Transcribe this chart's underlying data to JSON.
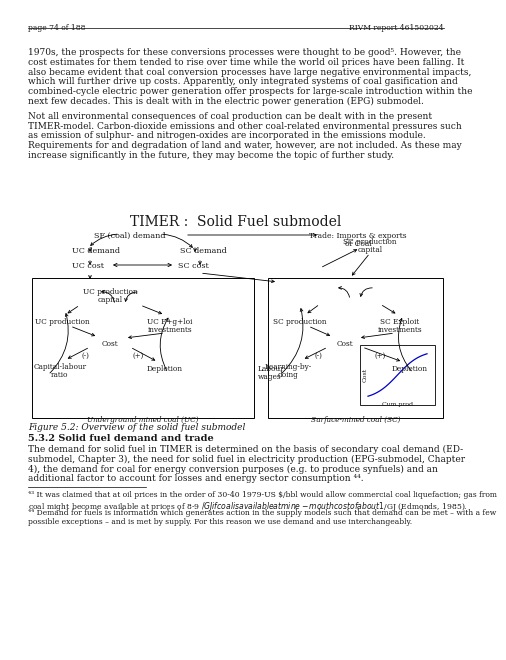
{
  "page_header_left": "page 74 of 188",
  "page_header_right": "RIVM report 461502024",
  "para1_lines": [
    "1970s, the prospects for these conversions processes were thought to be good⁵. However, the",
    "cost estimates for them tended to rise over time while the world oil prices have been falling. It",
    "also became evident that coal conversion processes have large negative environmental impacts,",
    "which will further drive up costs. Apparently, only integrated systems of coal gasification and",
    "combined-cycle electric power generation offer prospects for large-scale introduction within the",
    "next few decades. This is dealt with in the electric power generation (EPG) submodel."
  ],
  "para2_lines": [
    "Not all environmental consequences of coal production can be dealt with in the present",
    "TIMER-model. Carbon-dioxide emissions and other coal-related environmental pressures such",
    "as emission of sulphur- and nitrogen-oxides are incorporated in the emissions module.",
    "Requirements for and degradation of land and water, however, are not included. As these may",
    "increase significantly in the future, they may become the topic of further study."
  ],
  "diagram_title": "TIMER :  Solid Fuel submodel",
  "figure_caption": "Figure 5.2: Overview of the solid fuel submodel",
  "section_title": "5.3.2 Solid fuel demand and trade",
  "body_lines": [
    "The demand for solid fuel in TIMER is determined on the basis of secondary coal demand (ED-",
    "submodel, Chapter 3), the need for solid fuel in electricity production (EPG-submodel, Chapter",
    "4), the demand for coal for energy conversion purposes (e.g. to produce synfuels) and an",
    "additional factor to account for losses and energy sector consumption ⁴⁴."
  ],
  "fn1_lines": [
    "⁴³ It was claimed that at oil prices in the order of 30-40 1979-US $/bbl would allow commercial coal liquefaction; gas from",
    "coal might become available at prices of 8-9 $/GJ if coal is available at mine-mouth cost of about 1 $/GJ (Edmonds, 1985)."
  ],
  "fn2_lines": [
    "⁴⁴ Demand for fuels is information which generates action in the supply models such that demand can be met – with a few",
    "possible exceptions – and is met by supply. For this reason we use demand and use interchangeably."
  ],
  "bg_color": "#ffffff",
  "text_color": "#1a1a1a"
}
